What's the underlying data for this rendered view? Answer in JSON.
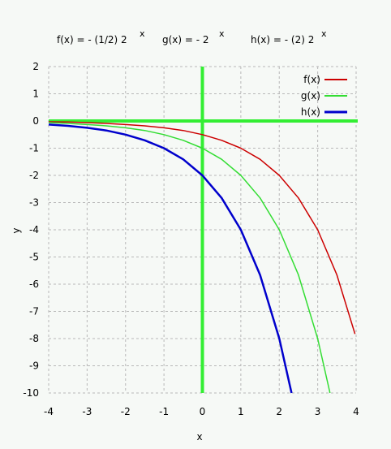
{
  "chart_data": {
    "type": "line",
    "title": {
      "f_base": "f(x) =  - (1/2)  2",
      "f_exp": "x",
      "g_base": "g(x) =  -  2",
      "g_exp": "x",
      "h_base": "h(x) = - (2)  2",
      "h_exp": "x"
    },
    "xlabel": "x",
    "ylabel": "y",
    "xlim": [
      -4,
      4
    ],
    "ylim": [
      -10,
      2
    ],
    "xticks": [
      -4,
      -3,
      -2,
      -1,
      0,
      1,
      2,
      3,
      4
    ],
    "yticks": [
      2,
      1,
      0,
      -1,
      -2,
      -3,
      -4,
      -5,
      -6,
      -7,
      -8,
      -9,
      -10
    ],
    "grid": true,
    "legend_position": "top-right",
    "axis_color": "#33ee33",
    "series": [
      {
        "name": "f(x)",
        "color": "#cc0000",
        "x": [
          -4,
          -3.5,
          -3,
          -2.5,
          -2,
          -1.5,
          -1,
          -0.5,
          0,
          0.5,
          1,
          1.5,
          2,
          2.5,
          3,
          3.5,
          3.97
        ],
        "y": [
          -0.03,
          -0.04,
          -0.06,
          -0.09,
          -0.13,
          -0.18,
          -0.25,
          -0.35,
          -0.5,
          -0.71,
          -1,
          -1.41,
          -2,
          -2.83,
          -4,
          -5.66,
          -7.83
        ]
      },
      {
        "name": "g(x)",
        "color": "#33dd33",
        "x": [
          -4,
          -3.5,
          -3,
          -2.5,
          -2,
          -1.5,
          -1,
          -0.5,
          0,
          0.5,
          1,
          1.5,
          2,
          2.5,
          3,
          3.32
        ],
        "y": [
          -0.06,
          -0.09,
          -0.13,
          -0.18,
          -0.25,
          -0.35,
          -0.5,
          -0.71,
          -1,
          -1.41,
          -2,
          -2.83,
          -4,
          -5.66,
          -8,
          -10
        ]
      },
      {
        "name": "h(x)",
        "color": "#0000cc",
        "x": [
          -4,
          -3.5,
          -3,
          -2.5,
          -2,
          -1.5,
          -1,
          -0.5,
          0,
          0.5,
          1,
          1.5,
          2,
          2.32
        ],
        "y": [
          -0.13,
          -0.18,
          -0.25,
          -0.35,
          -0.5,
          -0.71,
          -1,
          -1.41,
          -2,
          -2.83,
          -4,
          -5.66,
          -8,
          -10
        ]
      }
    ]
  }
}
